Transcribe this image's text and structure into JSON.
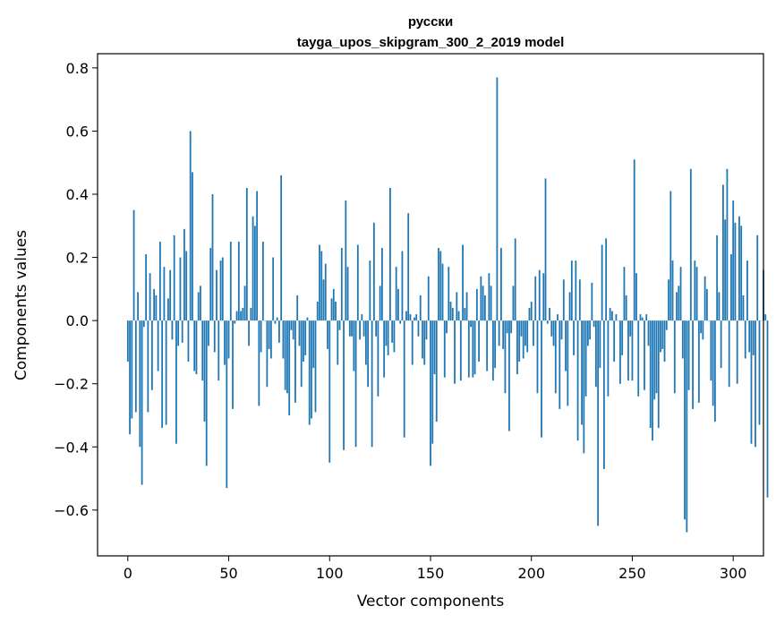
{
  "chart_data": {
    "type": "bar",
    "title_line1": "русски",
    "title_line2": "tayga_upos_skipgram_300_2_2019 model",
    "xlabel": "Vector components",
    "ylabel": "Components values",
    "xlim": [
      -15,
      315
    ],
    "ylim": [
      -0.745,
      0.845
    ],
    "xticks": [
      0,
      50,
      100,
      150,
      200,
      250,
      300
    ],
    "yticks": [
      -0.6,
      -0.4,
      -0.2,
      0.0,
      0.2,
      0.4,
      0.6,
      0.8
    ],
    "bar_color": "#1f77b4",
    "values": [
      -0.13,
      -0.36,
      -0.31,
      0.35,
      -0.29,
      0.09,
      -0.4,
      -0.52,
      -0.02,
      0.21,
      -0.29,
      0.15,
      -0.22,
      0.1,
      0.08,
      -0.16,
      0.25,
      -0.34,
      0.17,
      -0.33,
      0.07,
      0.16,
      -0.06,
      0.27,
      -0.39,
      -0.08,
      0.2,
      -0.07,
      0.29,
      0.22,
      -0.13,
      0.6,
      0.47,
      -0.16,
      -0.17,
      0.09,
      0.11,
      -0.19,
      -0.32,
      -0.46,
      -0.08,
      0.23,
      0.4,
      -0.1,
      0.16,
      -0.19,
      0.19,
      0.2,
      -0.14,
      -0.53,
      -0.12,
      0.25,
      -0.28,
      -0.01,
      0.03,
      0.25,
      0.03,
      0.04,
      0.11,
      0.42,
      -0.08,
      0.04,
      0.33,
      0.3,
      0.41,
      -0.27,
      -0.1,
      0.25,
      0.0,
      -0.21,
      -0.09,
      -0.12,
      0.2,
      -0.01,
      0.01,
      -0.07,
      0.46,
      -0.12,
      -0.22,
      -0.23,
      -0.3,
      -0.03,
      -0.06,
      -0.26,
      0.08,
      -0.08,
      -0.21,
      -0.13,
      -0.11,
      0.01,
      -0.33,
      -0.31,
      -0.15,
      -0.29,
      0.06,
      0.24,
      0.22,
      0.13,
      0.18,
      -0.09,
      -0.45,
      0.07,
      0.1,
      0.06,
      -0.14,
      -0.03,
      0.23,
      -0.41,
      0.38,
      0.17,
      -0.05,
      -0.05,
      -0.16,
      -0.4,
      0.24,
      -0.06,
      0.02,
      -0.05,
      -0.14,
      -0.21,
      0.19,
      -0.4,
      0.31,
      -0.05,
      -0.24,
      0.11,
      0.23,
      -0.18,
      -0.08,
      -0.11,
      0.42,
      -0.07,
      -0.1,
      0.17,
      0.1,
      -0.01,
      0.22,
      -0.37,
      0.03,
      0.34,
      0.02,
      -0.14,
      0.01,
      0.02,
      -0.05,
      0.08,
      -0.12,
      -0.14,
      -0.06,
      0.14,
      -0.46,
      -0.39,
      -0.17,
      -0.32,
      0.23,
      0.22,
      0.18,
      -0.18,
      -0.04,
      0.17,
      0.06,
      0.04,
      -0.2,
      0.09,
      0.03,
      -0.19,
      0.24,
      0.04,
      0.09,
      -0.18,
      -0.02,
      -0.18,
      -0.17,
      0.1,
      -0.13,
      0.14,
      0.11,
      0.08,
      -0.16,
      0.15,
      0.11,
      -0.19,
      -0.15,
      0.77,
      -0.08,
      0.23,
      -0.09,
      -0.23,
      -0.04,
      -0.35,
      -0.04,
      0.11,
      0.26,
      -0.17,
      -0.13,
      -0.05,
      -0.12,
      -0.08,
      -0.1,
      0.04,
      0.06,
      -0.08,
      0.14,
      -0.23,
      0.16,
      -0.37,
      0.15,
      0.45,
      -0.01,
      0.04,
      -0.05,
      -0.08,
      -0.23,
      0.02,
      -0.28,
      -0.06,
      0.13,
      -0.16,
      -0.27,
      0.09,
      0.19,
      -0.11,
      0.19,
      -0.38,
      0.13,
      -0.33,
      -0.42,
      -0.24,
      -0.08,
      -0.06,
      0.12,
      -0.02,
      -0.21,
      -0.65,
      -0.15,
      0.24,
      -0.47,
      0.26,
      -0.24,
      0.04,
      0.03,
      -0.13,
      0.02,
      0.0,
      -0.2,
      -0.11,
      0.17,
      0.08,
      -0.19,
      -0.05,
      -0.19,
      0.51,
      0.15,
      -0.24,
      0.02,
      0.01,
      -0.22,
      0.02,
      -0.08,
      -0.34,
      -0.38,
      -0.25,
      -0.23,
      -0.34,
      -0.1,
      -0.09,
      -0.13,
      -0.03,
      0.13,
      0.41,
      0.19,
      -0.23,
      0.09,
      0.11,
      0.17,
      -0.12,
      -0.63,
      -0.67,
      -0.22,
      0.48,
      -0.28,
      0.19,
      0.17,
      -0.26,
      -0.04,
      -0.06,
      0.14,
      0.1,
      0.0,
      -0.19,
      -0.27,
      -0.32,
      0.27,
      0.09,
      -0.15,
      0.43,
      0.32,
      0.48,
      -0.21,
      0.21,
      0.38,
      0.31,
      -0.2,
      0.33,
      0.3,
      0.08,
      -0.12,
      0.19,
      -0.1,
      -0.39,
      -0.11,
      -0.4,
      0.27,
      -0.33,
      0.0,
      0.16,
      0.02,
      -0.56
    ]
  }
}
